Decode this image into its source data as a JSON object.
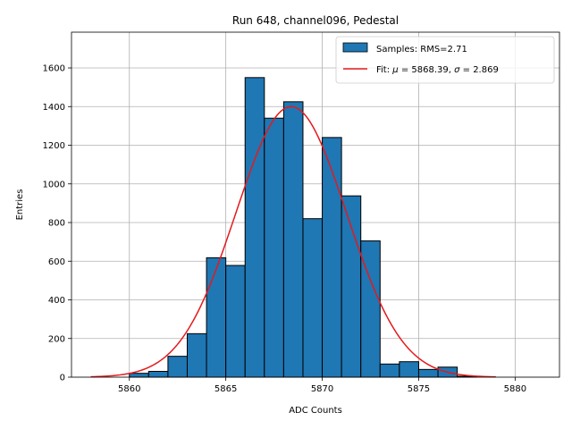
{
  "chart_data": {
    "type": "bar",
    "title": "Run 648, channel096, Pedestal",
    "xlabel": "ADC Counts",
    "ylabel": "Entries",
    "xlim": [
      5857.0,
      5882.3
    ],
    "ylim": [
      0,
      1785
    ],
    "x_ticks": [
      5860,
      5865,
      5870,
      5875,
      5880
    ],
    "y_ticks": [
      0,
      200,
      400,
      600,
      800,
      1000,
      1200,
      1400,
      1600
    ],
    "grid": true,
    "legend_position": "top-right",
    "series": [
      {
        "name": "Samples: RMS=2.71",
        "kind": "histogram",
        "color": "#1f77b4",
        "edge_color": "#000000",
        "bins": [
          {
            "x0": 5860,
            "x1": 5861,
            "count": 20
          },
          {
            "x0": 5861,
            "x1": 5862,
            "count": 30
          },
          {
            "x0": 5862,
            "x1": 5863,
            "count": 108
          },
          {
            "x0": 5863,
            "x1": 5864,
            "count": 225
          },
          {
            "x0": 5864,
            "x1": 5865,
            "count": 618
          },
          {
            "x0": 5865,
            "x1": 5866,
            "count": 578
          },
          {
            "x0": 5866,
            "x1": 5867,
            "count": 1550
          },
          {
            "x0": 5867,
            "x1": 5868,
            "count": 1340
          },
          {
            "x0": 5868,
            "x1": 5869,
            "count": 1425
          },
          {
            "x0": 5869,
            "x1": 5870,
            "count": 820
          },
          {
            "x0": 5870,
            "x1": 5871,
            "count": 1240
          },
          {
            "x0": 5871,
            "x1": 5872,
            "count": 938
          },
          {
            "x0": 5872,
            "x1": 5873,
            "count": 705
          },
          {
            "x0": 5873,
            "x1": 5874,
            "count": 68
          },
          {
            "x0": 5874,
            "x1": 5875,
            "count": 80
          },
          {
            "x0": 5875,
            "x1": 5876,
            "count": 40
          },
          {
            "x0": 5876,
            "x1": 5877,
            "count": 52
          },
          {
            "x0": 5877,
            "x1": 5878,
            "count": 5
          }
        ]
      },
      {
        "name": "Fit: μ = 5868.39, σ = 2.869",
        "kind": "gaussian-fit",
        "color": "#e41a1c",
        "mu": 5868.39,
        "sigma": 2.869,
        "amplitude": 1400,
        "x_range": [
          5858,
          5879
        ]
      }
    ],
    "legend": {
      "samples_label": "Samples: RMS=2.71",
      "fit_prefix": "Fit: ",
      "fit_mu_symbol": "μ",
      "fit_mu_text": " = 5868.39, ",
      "fit_sigma_symbol": "σ",
      "fit_sigma_text": " = 2.869"
    }
  }
}
